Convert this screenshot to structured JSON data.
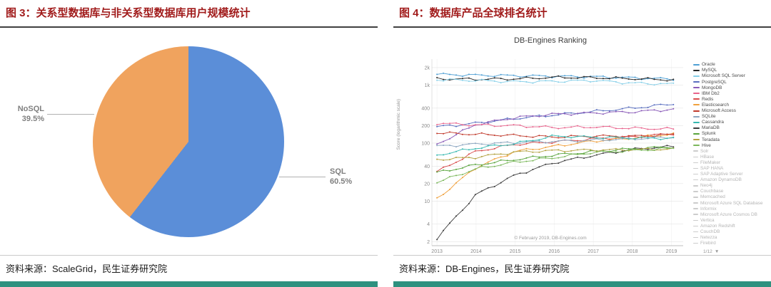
{
  "page": {
    "accent_bar_color": "#2e917f",
    "title_color": "#a11c1c"
  },
  "left_panel": {
    "title": "图 3：关系型数据库与非关系型数据库用户规模统计",
    "source": "资料来源：ScaleGrid，民生证券研究院"
  },
  "right_panel": {
    "title": "图 4：数据库产品全球排名统计",
    "source": "资料来源：DB-Engines，民生证券研究院"
  },
  "chart_data": [
    {
      "type": "pie",
      "labels": [
        "SQL",
        "NoSQL"
      ],
      "values": [
        60.5,
        39.5
      ],
      "value_labels": [
        "60.5%",
        "39.5%"
      ],
      "colors": [
        "#5b8ed8",
        "#f0a35e"
      ],
      "label_text_color": "#7f7f7f"
    },
    {
      "type": "line",
      "title": "DB-Engines Ranking",
      "ylabel": "Score (logarithmic scale)",
      "y_scale": "log",
      "grid": true,
      "legend_position": "right",
      "ylim": [
        1.7,
        2800
      ],
      "x_range": [
        2012.87,
        2019.3
      ],
      "x_ticks": [
        2013,
        2014,
        2015,
        2016,
        2017,
        2018,
        2019
      ],
      "y_ticks": [
        {
          "v": 2000,
          "label": "2k"
        },
        {
          "v": 1000,
          "label": "1k"
        },
        {
          "v": 400,
          "label": "400"
        },
        {
          "v": 200,
          "label": "200"
        },
        {
          "v": 100,
          "label": "100"
        },
        {
          "v": 40,
          "label": "40"
        },
        {
          "v": 20,
          "label": "20"
        },
        {
          "v": 10,
          "label": "10"
        },
        {
          "v": 4,
          "label": "4"
        },
        {
          "v": 2,
          "label": "2"
        }
      ],
      "anchor_years": [
        2013,
        2014,
        2015,
        2016,
        2017,
        2018,
        2019
      ],
      "series": [
        {
          "name": "Oracle",
          "color": "#4e9fd4",
          "anchors": [
            1530,
            1480,
            1450,
            1420,
            1390,
            1330,
            1270
          ]
        },
        {
          "name": "MySQL",
          "color": "#262626",
          "anchors": [
            1280,
            1260,
            1280,
            1360,
            1340,
            1290,
            1230
          ]
        },
        {
          "name": "Microsoft SQL Server",
          "color": "#86cfe8",
          "anchors": [
            1240,
            1200,
            1140,
            1160,
            1200,
            1080,
            1040
          ]
        },
        {
          "name": "PostgreSQL",
          "color": "#5a6fc0",
          "anchors": [
            190,
            220,
            265,
            305,
            350,
            400,
            470
          ]
        },
        {
          "name": "MongoDB",
          "color": "#8a5bb8",
          "anchors": [
            95,
            210,
            275,
            315,
            330,
            345,
            380
          ]
        },
        {
          "name": "IBM Db2",
          "color": "#e8638c",
          "anchors": [
            220,
            205,
            200,
            185,
            190,
            180,
            175
          ]
        },
        {
          "name": "Redis",
          "color": "#d84b4b",
          "anchors": [
            32,
            72,
            95,
            105,
            118,
            128,
            145
          ]
        },
        {
          "name": "Elasticsearch",
          "color": "#f0a03c",
          "anchors": [
            11,
            38,
            72,
            88,
            108,
            122,
            143
          ]
        },
        {
          "name": "Microsoft Access",
          "color": "#c0392b",
          "anchors": [
            150,
            142,
            135,
            127,
            132,
            131,
            140
          ]
        },
        {
          "name": "SQLite",
          "color": "#8ca6c0",
          "anchors": [
            88,
            96,
            102,
            107,
            112,
            118,
            126
          ]
        },
        {
          "name": "Cassandra",
          "color": "#35b8b0",
          "anchors": [
            62,
            82,
            98,
            132,
            126,
            122,
            121
          ]
        },
        {
          "name": "MariaDB",
          "color": "#3c3c3c",
          "anchors": [
            2.3,
            13,
            28,
            46,
            61,
            78,
            87
          ]
        },
        {
          "name": "Splunk",
          "color": "#58a43c",
          "anchors": [
            31,
            42,
            52,
            62,
            71,
            80,
            86
          ]
        },
        {
          "name": "Teradata",
          "color": "#b3a241",
          "anchors": [
            52,
            57,
            70,
            74,
            76,
            77,
            79
          ]
        },
        {
          "name": "Hive",
          "color": "#7cb85c",
          "anchors": [
            21,
            36,
            47,
            56,
            69,
            74,
            81
          ]
        }
      ],
      "inactive_legend": [
        "Solr",
        "HBase",
        "FileMaker",
        "SAP HANA",
        "SAP Adaptive Server",
        "Amazon DynamoDB",
        "Neo4j",
        "Couchbase",
        "Memcached",
        "Microsoft Azure SQL Database",
        "Informix",
        "Microsoft Azure Cosmos DB",
        "Vertica",
        "Amazon Redshift",
        "CouchDB",
        "Netezza",
        "Firebird"
      ],
      "copyright": "© February 2019, DB-Engines.com",
      "pager": "1/12",
      "pager_dropdown_icon": "▼"
    }
  ]
}
